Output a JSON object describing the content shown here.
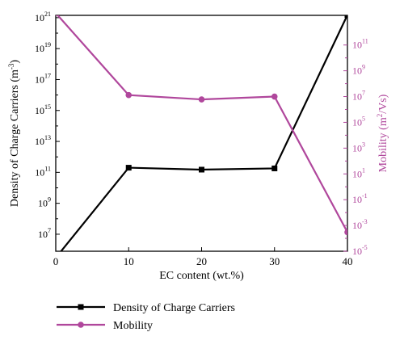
{
  "chart_data": {
    "type": "line",
    "xlabel": "EC content (wt.%)",
    "x_ticks": [
      "0",
      "10",
      "20",
      "30",
      "40"
    ],
    "xlim": [
      0,
      40
    ],
    "left_axis": {
      "label": "Density of Charge Carriers (m",
      "label_sup": "-3",
      "label_end": ")",
      "scale": "log",
      "ylim_exp": [
        5.9,
        21.15
      ],
      "ticks": [
        {
          "base": "10",
          "exp": "7",
          "e": 7
        },
        {
          "base": "10",
          "exp": "9",
          "e": 9
        },
        {
          "base": "10",
          "exp": "11",
          "e": 11
        },
        {
          "base": "10",
          "exp": "13",
          "e": 13
        },
        {
          "base": "10",
          "exp": "15",
          "e": 15
        },
        {
          "base": "10",
          "exp": "17",
          "e": 17
        },
        {
          "base": "10",
          "exp": "19",
          "e": 19
        },
        {
          "base": "10",
          "exp": "21",
          "e": 21
        }
      ],
      "color": "#000000"
    },
    "right_axis": {
      "label": "Mobility (m",
      "label_sup": "2",
      "label_end": "/Vs)",
      "scale": "log",
      "ylim_exp": [
        -5,
        13.3
      ],
      "ticks": [
        {
          "base": "10",
          "exp": "-5",
          "e": -5
        },
        {
          "base": "10",
          "exp": "-3",
          "e": -3
        },
        {
          "base": "10",
          "exp": "-1",
          "e": -1
        },
        {
          "base": "10",
          "exp": "1",
          "e": 1
        },
        {
          "base": "10",
          "exp": "3",
          "e": 3
        },
        {
          "base": "10",
          "exp": "5",
          "e": 5
        },
        {
          "base": "10",
          "exp": "7",
          "e": 7
        },
        {
          "base": "10",
          "exp": "9",
          "e": 9
        },
        {
          "base": "10",
          "exp": "11",
          "e": 11
        }
      ],
      "color": "#b0479c"
    },
    "x": [
      0,
      10,
      20,
      30,
      40
    ],
    "series": [
      {
        "name": "Density of Charge Carriers",
        "axis": "left",
        "marker": "square",
        "color": "#000000",
        "values": [
          300000.0,
          200000000000.0,
          150000000000.0,
          180000000000.0,
          1.5e+21
        ]
      },
      {
        "name": "Mobility",
        "axis": "right",
        "marker": "circle",
        "color": "#b0479c",
        "values": [
          30000000000000.0,
          13000000.0,
          6000000.0,
          10000000.0,
          0.0003
        ]
      }
    ],
    "legend": {
      "placement": "bottom",
      "entries": [
        "Density of Charge Carriers",
        "Mobility"
      ]
    },
    "grid": false
  }
}
